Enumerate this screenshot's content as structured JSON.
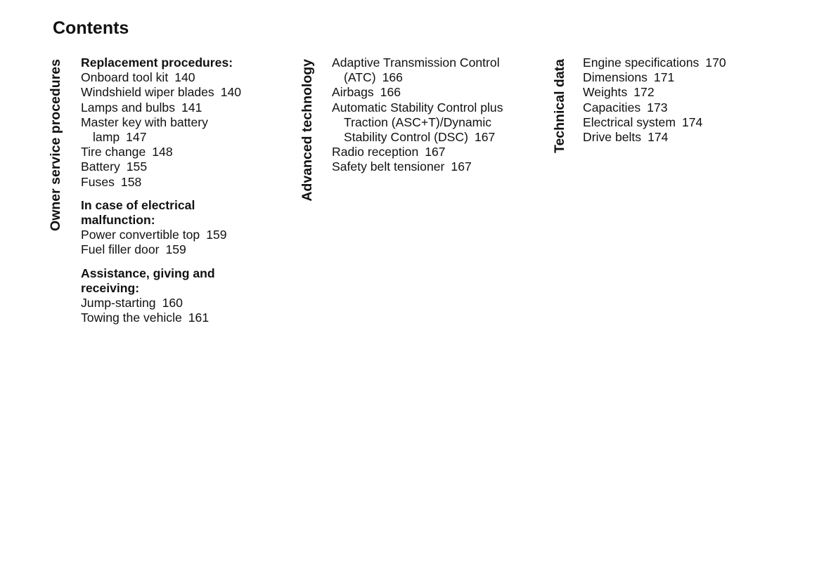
{
  "title": "Contents",
  "sections": [
    {
      "label": "Owner service procedures",
      "groups": [
        {
          "heading": [
            "Replacement procedures:"
          ],
          "entries": [
            {
              "lines": [
                "Onboard tool kit"
              ],
              "page": "140"
            },
            {
              "lines": [
                "Windshield wiper blades"
              ],
              "page": "140"
            },
            {
              "lines": [
                "Lamps and bulbs"
              ],
              "page": "141"
            },
            {
              "lines": [
                "Master key with battery",
                "lamp"
              ],
              "page": "147"
            },
            {
              "lines": [
                "Tire change"
              ],
              "page": "148"
            },
            {
              "lines": [
                "Battery"
              ],
              "page": "155"
            },
            {
              "lines": [
                "Fuses"
              ],
              "page": "158"
            }
          ]
        },
        {
          "heading": [
            "In case of electrical",
            "malfunction:"
          ],
          "entries": [
            {
              "lines": [
                "Power convertible top"
              ],
              "page": "159"
            },
            {
              "lines": [
                "Fuel filler door"
              ],
              "page": "159"
            }
          ]
        },
        {
          "heading": [
            "Assistance, giving and",
            "receiving:"
          ],
          "entries": [
            {
              "lines": [
                "Jump-starting"
              ],
              "page": "160"
            },
            {
              "lines": [
                "Towing the vehicle"
              ],
              "page": "161"
            }
          ]
        }
      ]
    },
    {
      "label": "Advanced technology",
      "groups": [
        {
          "heading": [],
          "entries": [
            {
              "lines": [
                "Adaptive Transmission Control",
                "(ATC)"
              ],
              "page": "166"
            },
            {
              "lines": [
                "Airbags"
              ],
              "page": "166"
            },
            {
              "lines": [
                "Automatic Stability Control plus",
                "Traction (ASC+T)/Dynamic",
                "Stability Control (DSC)"
              ],
              "page": "167"
            },
            {
              "lines": [
                "Radio reception"
              ],
              "page": "167"
            },
            {
              "lines": [
                "Safety belt tensioner"
              ],
              "page": "167"
            }
          ]
        }
      ]
    },
    {
      "label": "Technical data",
      "groups": [
        {
          "heading": [],
          "entries": [
            {
              "lines": [
                "Engine specifications"
              ],
              "page": "170"
            },
            {
              "lines": [
                "Dimensions"
              ],
              "page": "171"
            },
            {
              "lines": [
                "Weights"
              ],
              "page": "172"
            },
            {
              "lines": [
                "Capacities"
              ],
              "page": "173"
            },
            {
              "lines": [
                "Electrical system"
              ],
              "page": "174"
            },
            {
              "lines": [
                "Drive belts"
              ],
              "page": "174"
            }
          ]
        }
      ]
    }
  ]
}
